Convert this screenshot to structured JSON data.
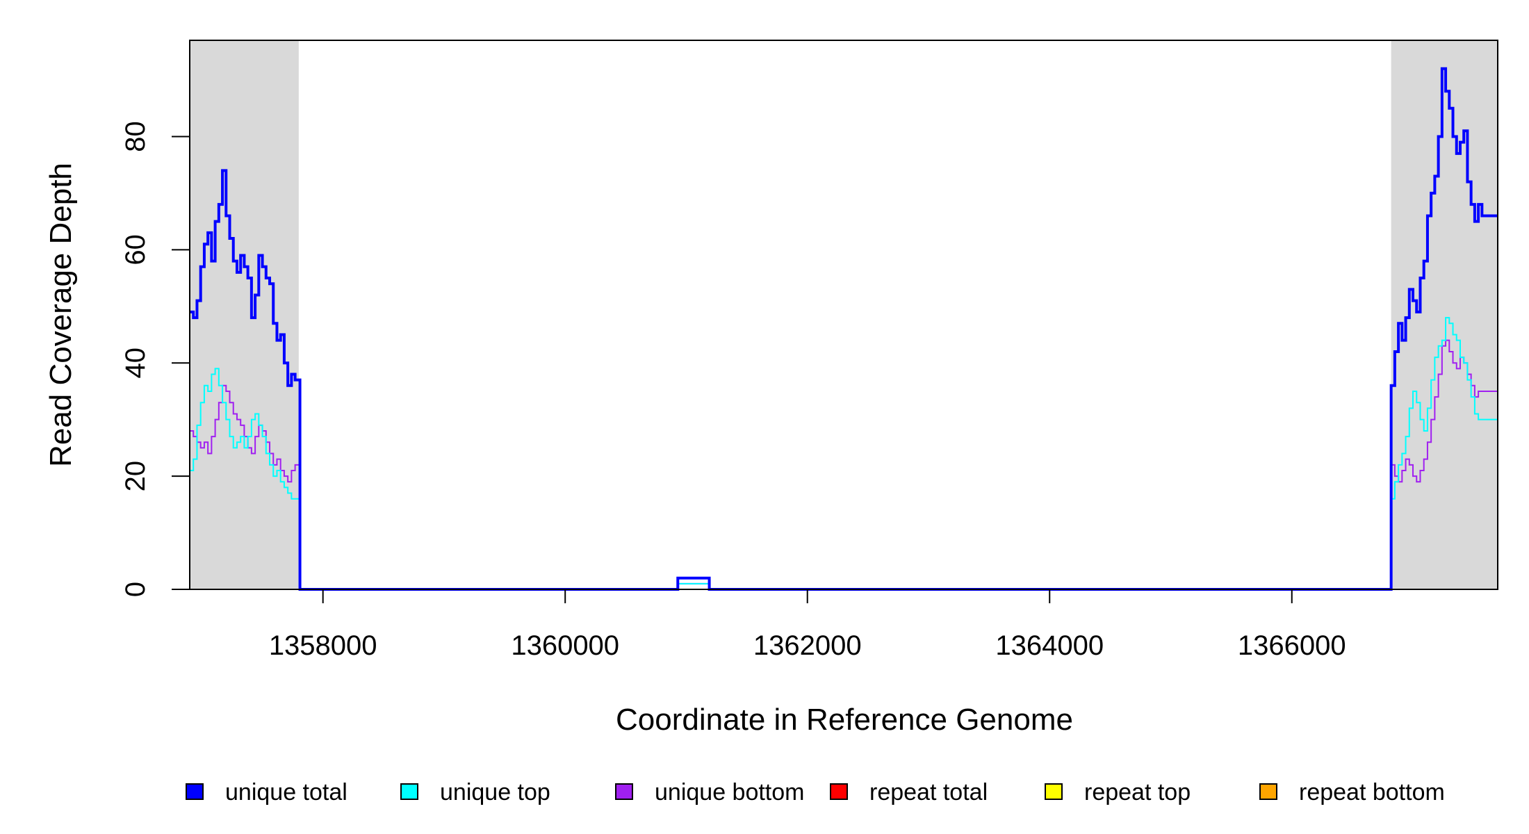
{
  "chart_data": {
    "type": "line",
    "title": "",
    "xlabel": "Coordinate in Reference Genome",
    "ylabel": "Read Coverage Depth",
    "xlim": [
      1356900,
      1367700
    ],
    "ylim": [
      0,
      97
    ],
    "x_ticks": [
      1358000,
      1360000,
      1362000,
      1364000,
      1366000
    ],
    "y_ticks": [
      0,
      20,
      40,
      60,
      80
    ],
    "shaded_regions": [
      {
        "start": 1356900,
        "end": 1357800
      },
      {
        "start": 1366820,
        "end": 1367700
      }
    ],
    "grid": false,
    "legend_position": "bottom",
    "series": [
      {
        "name": "unique total",
        "color": "#0000ff",
        "x": [
          1356900,
          1356930,
          1356960,
          1356990,
          1357020,
          1357050,
          1357080,
          1357110,
          1357140,
          1357170,
          1357200,
          1357230,
          1357260,
          1357290,
          1357320,
          1357350,
          1357380,
          1357410,
          1357440,
          1357470,
          1357500,
          1357530,
          1357560,
          1357590,
          1357620,
          1357650,
          1357680,
          1357710,
          1357740,
          1357770,
          1357800,
          1357810,
          1360920,
          1360930,
          1361180,
          1361190,
          1366810,
          1366820,
          1366850,
          1366880,
          1366910,
          1366940,
          1366970,
          1367000,
          1367030,
          1367060,
          1367090,
          1367120,
          1367150,
          1367180,
          1367210,
          1367240,
          1367270,
          1367300,
          1367330,
          1367360,
          1367390,
          1367420,
          1367450,
          1367480,
          1367510,
          1367540,
          1367570,
          1367600,
          1367630,
          1367660,
          1367700
        ],
        "y": [
          49,
          48,
          51,
          57,
          61,
          63,
          58,
          65,
          68,
          74,
          66,
          62,
          58,
          56,
          59,
          57,
          55,
          48,
          52,
          59,
          57,
          55,
          54,
          47,
          44,
          45,
          40,
          36,
          38,
          37,
          37,
          0,
          0,
          2,
          2,
          0,
          0,
          36,
          42,
          47,
          44,
          48,
          53,
          51,
          49,
          55,
          58,
          66,
          70,
          73,
          80,
          92,
          88,
          85,
          80,
          77,
          79,
          81,
          72,
          68,
          65,
          68,
          66,
          66,
          66,
          66,
          66
        ]
      },
      {
        "name": "unique top",
        "color": "#00ffff",
        "x": [
          1356900,
          1356930,
          1356960,
          1356990,
          1357020,
          1357050,
          1357080,
          1357110,
          1357140,
          1357170,
          1357200,
          1357230,
          1357260,
          1357290,
          1357320,
          1357350,
          1357380,
          1357410,
          1357440,
          1357470,
          1357500,
          1357530,
          1357560,
          1357590,
          1357620,
          1357650,
          1357680,
          1357710,
          1357740,
          1357770,
          1357800,
          1357810,
          1360920,
          1360930,
          1361180,
          1361190,
          1366810,
          1366820,
          1366850,
          1366880,
          1366910,
          1366940,
          1366970,
          1367000,
          1367030,
          1367060,
          1367090,
          1367120,
          1367150,
          1367180,
          1367210,
          1367240,
          1367270,
          1367300,
          1367330,
          1367360,
          1367390,
          1367420,
          1367450,
          1367480,
          1367510,
          1367540,
          1367570,
          1367600,
          1367630,
          1367660,
          1367700
        ],
        "y": [
          21,
          23,
          29,
          33,
          36,
          35,
          38,
          39,
          36,
          33,
          30,
          27,
          25,
          26,
          27,
          25,
          27,
          30,
          31,
          29,
          27,
          24,
          22,
          20,
          21,
          19,
          18,
          17,
          16,
          16,
          16,
          0,
          0,
          1,
          1,
          0,
          0,
          16,
          19,
          22,
          24,
          27,
          32,
          35,
          33,
          30,
          28,
          32,
          37,
          41,
          43,
          44,
          48,
          47,
          45,
          44,
          41,
          40,
          37,
          34,
          31,
          30,
          30,
          30,
          30,
          30,
          30
        ]
      },
      {
        "name": "unique bottom",
        "color": "#a020f0",
        "x": [
          1356900,
          1356930,
          1356960,
          1356990,
          1357020,
          1357050,
          1357080,
          1357110,
          1357140,
          1357170,
          1357200,
          1357230,
          1357260,
          1357290,
          1357320,
          1357350,
          1357380,
          1357410,
          1357440,
          1357470,
          1357500,
          1357530,
          1357560,
          1357590,
          1357620,
          1357650,
          1357680,
          1357710,
          1357740,
          1357770,
          1357800,
          1357810,
          1360920,
          1360930,
          1361180,
          1361190,
          1366810,
          1366820,
          1366850,
          1366880,
          1366910,
          1366940,
          1366970,
          1367000,
          1367030,
          1367060,
          1367090,
          1367120,
          1367150,
          1367180,
          1367210,
          1367240,
          1367270,
          1367300,
          1367330,
          1367360,
          1367390,
          1367420,
          1367450,
          1367480,
          1367510,
          1367540,
          1367570,
          1367600,
          1367630,
          1367660,
          1367700
        ],
        "y": [
          28,
          27,
          26,
          25,
          26,
          24,
          27,
          30,
          33,
          36,
          35,
          33,
          31,
          30,
          29,
          27,
          25,
          24,
          27,
          29,
          28,
          26,
          24,
          22,
          23,
          21,
          20,
          19,
          21,
          22,
          22,
          0,
          0,
          1,
          1,
          0,
          0,
          22,
          20,
          19,
          21,
          23,
          22,
          20,
          19,
          21,
          23,
          26,
          30,
          34,
          38,
          43,
          44,
          42,
          40,
          39,
          41,
          40,
          38,
          36,
          34,
          35,
          35,
          35,
          35,
          35,
          35
        ]
      },
      {
        "name": "repeat total",
        "color": "#ff0000",
        "x": [
          1356900,
          1367700
        ],
        "y": [
          0,
          0
        ]
      },
      {
        "name": "repeat top",
        "color": "#ffff00",
        "x": [
          1356900,
          1367700
        ],
        "y": [
          0,
          0
        ]
      },
      {
        "name": "repeat bottom",
        "color": "#ffa500",
        "x": [
          1356900,
          1367700
        ],
        "y": [
          0,
          0
        ]
      }
    ]
  }
}
